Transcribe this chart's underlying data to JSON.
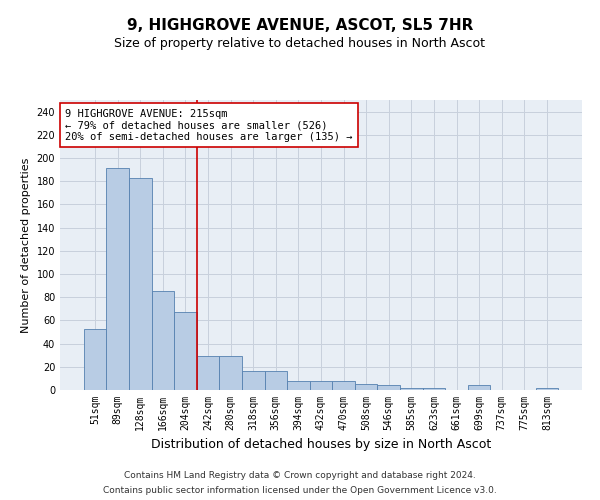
{
  "title": "9, HIGHGROVE AVENUE, ASCOT, SL5 7HR",
  "subtitle": "Size of property relative to detached houses in North Ascot",
  "xlabel": "Distribution of detached houses by size in North Ascot",
  "ylabel": "Number of detached properties",
  "categories": [
    "51sqm",
    "89sqm",
    "128sqm",
    "166sqm",
    "204sqm",
    "242sqm",
    "280sqm",
    "318sqm",
    "356sqm",
    "394sqm",
    "432sqm",
    "470sqm",
    "508sqm",
    "546sqm",
    "585sqm",
    "623sqm",
    "661sqm",
    "699sqm",
    "737sqm",
    "775sqm",
    "813sqm"
  ],
  "values": [
    53,
    191,
    183,
    85,
    67,
    29,
    29,
    16,
    16,
    8,
    8,
    8,
    5,
    4,
    2,
    2,
    0,
    4,
    0,
    0,
    2
  ],
  "bar_color": "#b8cce4",
  "bar_edge_color": "#5580b0",
  "vline_x": 4.5,
  "vline_color": "#cc0000",
  "annotation_line1": "9 HIGHGROVE AVENUE: 215sqm",
  "annotation_line2": "← 79% of detached houses are smaller (526)",
  "annotation_line3": "20% of semi-detached houses are larger (135) →",
  "annotation_box_color": "#ffffff",
  "annotation_box_edge": "#cc0000",
  "ylim": [
    0,
    250
  ],
  "yticks": [
    0,
    20,
    40,
    60,
    80,
    100,
    120,
    140,
    160,
    180,
    200,
    220,
    240
  ],
  "grid_color": "#c8d0dc",
  "background_color": "#e8eef5",
  "footer_line1": "Contains HM Land Registry data © Crown copyright and database right 2024.",
  "footer_line2": "Contains public sector information licensed under the Open Government Licence v3.0.",
  "title_fontsize": 11,
  "subtitle_fontsize": 9,
  "xlabel_fontsize": 9,
  "ylabel_fontsize": 8,
  "tick_fontsize": 7,
  "footer_fontsize": 6.5,
  "annotation_fontsize": 7.5
}
